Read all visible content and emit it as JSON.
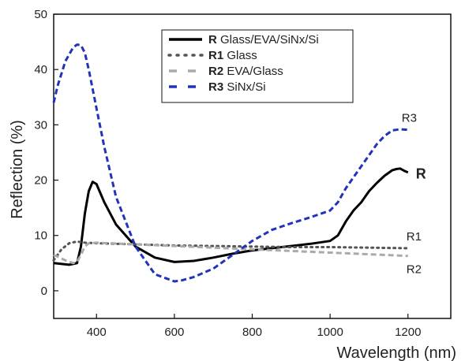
{
  "chart_data": {
    "type": "line",
    "xlabel": "Wavelength (nm)",
    "ylabel": "Reflection (%)",
    "xlim": [
      290,
      1310
    ],
    "ylim": [
      -5,
      50
    ],
    "xticks": [
      400,
      600,
      800,
      1000,
      1200
    ],
    "yticks": [
      0,
      10,
      20,
      30,
      40,
      50
    ],
    "grid": false,
    "legend_position": "top-center",
    "series": [
      {
        "id": "R",
        "name": "R",
        "legend_desc": "Glass/EVA/SiNx/Si",
        "end_label": "R",
        "color": "#000000",
        "style": "solid",
        "x": [
          290,
          330,
          350,
          360,
          370,
          380,
          390,
          400,
          420,
          450,
          500,
          550,
          600,
          650,
          700,
          750,
          800,
          850,
          900,
          950,
          1000,
          1020,
          1040,
          1060,
          1080,
          1100,
          1120,
          1140,
          1160,
          1170,
          1180,
          1190,
          1200
        ],
        "y": [
          5.0,
          4.7,
          5.0,
          8.0,
          14.0,
          18.0,
          19.7,
          19.3,
          16.0,
          12.0,
          8.0,
          6.0,
          5.2,
          5.4,
          6.0,
          6.7,
          7.3,
          7.7,
          8.1,
          8.5,
          9.0,
          10.0,
          12.5,
          14.5,
          16.0,
          18.0,
          19.5,
          20.8,
          21.8,
          22.0,
          22.1,
          21.7,
          21.4
        ]
      },
      {
        "id": "R1",
        "name": "R1",
        "legend_desc": "Glass",
        "end_label": "R1",
        "color": "#555555",
        "style": "dotted",
        "x": [
          290,
          310,
          330,
          350,
          360,
          370,
          400,
          500,
          600,
          700,
          800,
          900,
          1000,
          1100,
          1200
        ],
        "y": [
          5.5,
          7.5,
          8.6,
          8.9,
          8.8,
          8.7,
          8.6,
          8.4,
          8.2,
          8.1,
          8.0,
          7.9,
          7.9,
          7.8,
          7.7
        ]
      },
      {
        "id": "R2",
        "name": "R2",
        "legend_desc": "EVA/Glass",
        "end_label": "R2",
        "color": "#aaaaaa",
        "style": "dashed",
        "x": [
          290,
          320,
          340,
          350,
          360,
          370,
          380,
          400,
          500,
          600,
          700,
          800,
          900,
          1000,
          1100,
          1200
        ],
        "y": [
          6.5,
          5.5,
          5.0,
          5.2,
          6.5,
          8.0,
          8.6,
          8.7,
          8.4,
          8.1,
          7.8,
          7.5,
          7.2,
          6.9,
          6.6,
          6.3
        ]
      },
      {
        "id": "R3",
        "name": "R3",
        "legend_desc": "SiNx/Si",
        "end_label": "R3",
        "color": "#2233bb",
        "style": "dashed",
        "x": [
          290,
          300,
          320,
          340,
          350,
          360,
          370,
          380,
          400,
          420,
          450,
          500,
          550,
          600,
          620,
          650,
          700,
          750,
          800,
          850,
          900,
          950,
          1000,
          1020,
          1040,
          1060,
          1080,
          1100,
          1120,
          1140,
          1160,
          1180,
          1200
        ],
        "y": [
          34.0,
          37.0,
          41.5,
          44.0,
          44.5,
          44.4,
          43.0,
          40.0,
          33.0,
          26.0,
          17.0,
          8.0,
          3.0,
          1.7,
          1.9,
          2.5,
          4.0,
          6.5,
          9.0,
          11.0,
          12.2,
          13.3,
          14.5,
          16.0,
          18.5,
          20.5,
          22.5,
          24.5,
          26.5,
          28.0,
          29.0,
          29.2,
          29.1
        ]
      }
    ]
  }
}
